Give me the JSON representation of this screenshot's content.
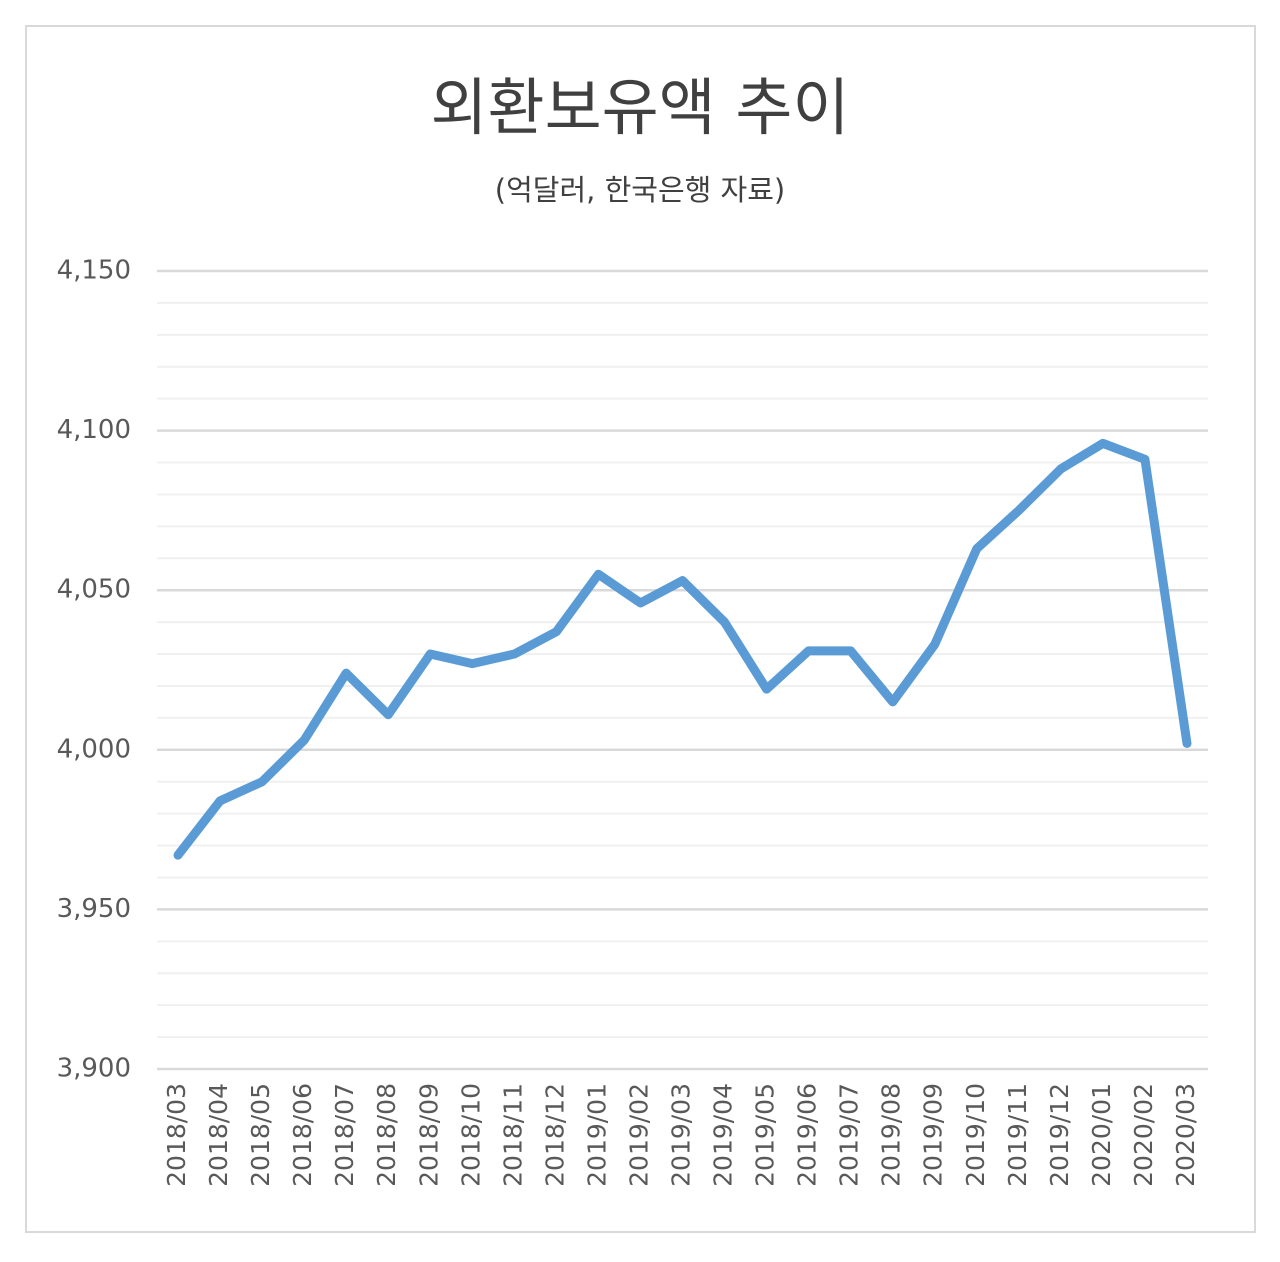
{
  "chart_data": {
    "type": "line",
    "title": "외환보유액 추이",
    "subtitle": "(억달러, 한국은행 자료)",
    "categories": [
      "2018/03",
      "2018/04",
      "2018/05",
      "2018/06",
      "2018/07",
      "2018/08",
      "2018/09",
      "2018/10",
      "2018/11",
      "2018/12",
      "2019/01",
      "2019/02",
      "2019/03",
      "2019/04",
      "2019/05",
      "2019/06",
      "2019/07",
      "2019/08",
      "2019/09",
      "2019/10",
      "2019/11",
      "2019/12",
      "2020/01",
      "2020/02",
      "2020/03"
    ],
    "values": [
      3967,
      3984,
      3990,
      4003,
      4024,
      4011,
      4030,
      4027,
      4030,
      4037,
      4055,
      4046,
      4053,
      4040,
      4019,
      4031,
      4031,
      4015,
      4033,
      4063,
      4075,
      4088,
      4096,
      4091,
      4002
    ],
    "color": "#5b9bd5",
    "ylim": [
      3900,
      4150
    ],
    "yticks": [
      {
        "value": 3900,
        "label": "3,900"
      },
      {
        "value": 3950,
        "label": "3,950"
      },
      {
        "value": 4000,
        "label": "4,000"
      },
      {
        "value": 4050,
        "label": "4,050"
      },
      {
        "value": 4100,
        "label": "4,100"
      },
      {
        "value": 4150,
        "label": "4,150"
      }
    ],
    "grid": true,
    "minor_grid": true
  }
}
